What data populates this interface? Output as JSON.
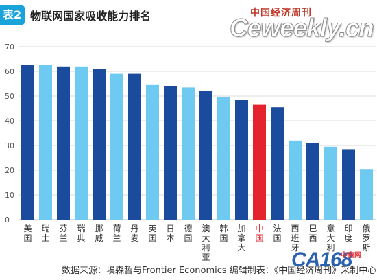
{
  "header": {
    "badge": "表2",
    "title": "物联网国家吸收能力排名",
    "masthead": "中国经济周刊",
    "site": "Ceweekly.cn"
  },
  "source_note": "数据来源：埃森哲与Frontier Economics  编辑制表：《中国经济周刊》采制中心",
  "watermark": {
    "logo": "CA168",
    "sub": "中自网"
  },
  "colors": {
    "dark_blue": "#1a4b9c",
    "light_blue": "#6fcaf2",
    "highlight": "#e5232d",
    "grid": "#d9d9d9",
    "axis_text": "#555555"
  },
  "chart_data": {
    "type": "bar",
    "title": "物联网国家吸收能力排名",
    "categories": [
      "美国",
      "瑞士",
      "芬兰",
      "瑞典",
      "挪威",
      "荷兰",
      "丹麦",
      "英国",
      "日本",
      "德国",
      "澳大利亚",
      "韩国",
      "加拿大",
      "中国",
      "法国",
      "西班牙",
      "巴西",
      "意大利",
      "印度",
      "俄罗斯"
    ],
    "values": [
      62.5,
      62.5,
      62,
      62,
      61,
      59,
      59,
      54.5,
      54,
      53.5,
      52,
      49.5,
      48.5,
      46.5,
      45.5,
      32,
      31,
      29.5,
      28.5,
      20.5
    ],
    "bar_colors": [
      "dark",
      "light",
      "dark",
      "light",
      "dark",
      "light",
      "dark",
      "light",
      "dark",
      "light",
      "dark",
      "light",
      "dark",
      "highlight",
      "dark",
      "light",
      "dark",
      "light",
      "dark",
      "light"
    ],
    "yticks": [
      "0",
      "10",
      "20",
      "30",
      "40",
      "50",
      "60",
      "70"
    ],
    "ylim": [
      0,
      70
    ],
    "grid": true,
    "xlabel": "",
    "ylabel": ""
  }
}
